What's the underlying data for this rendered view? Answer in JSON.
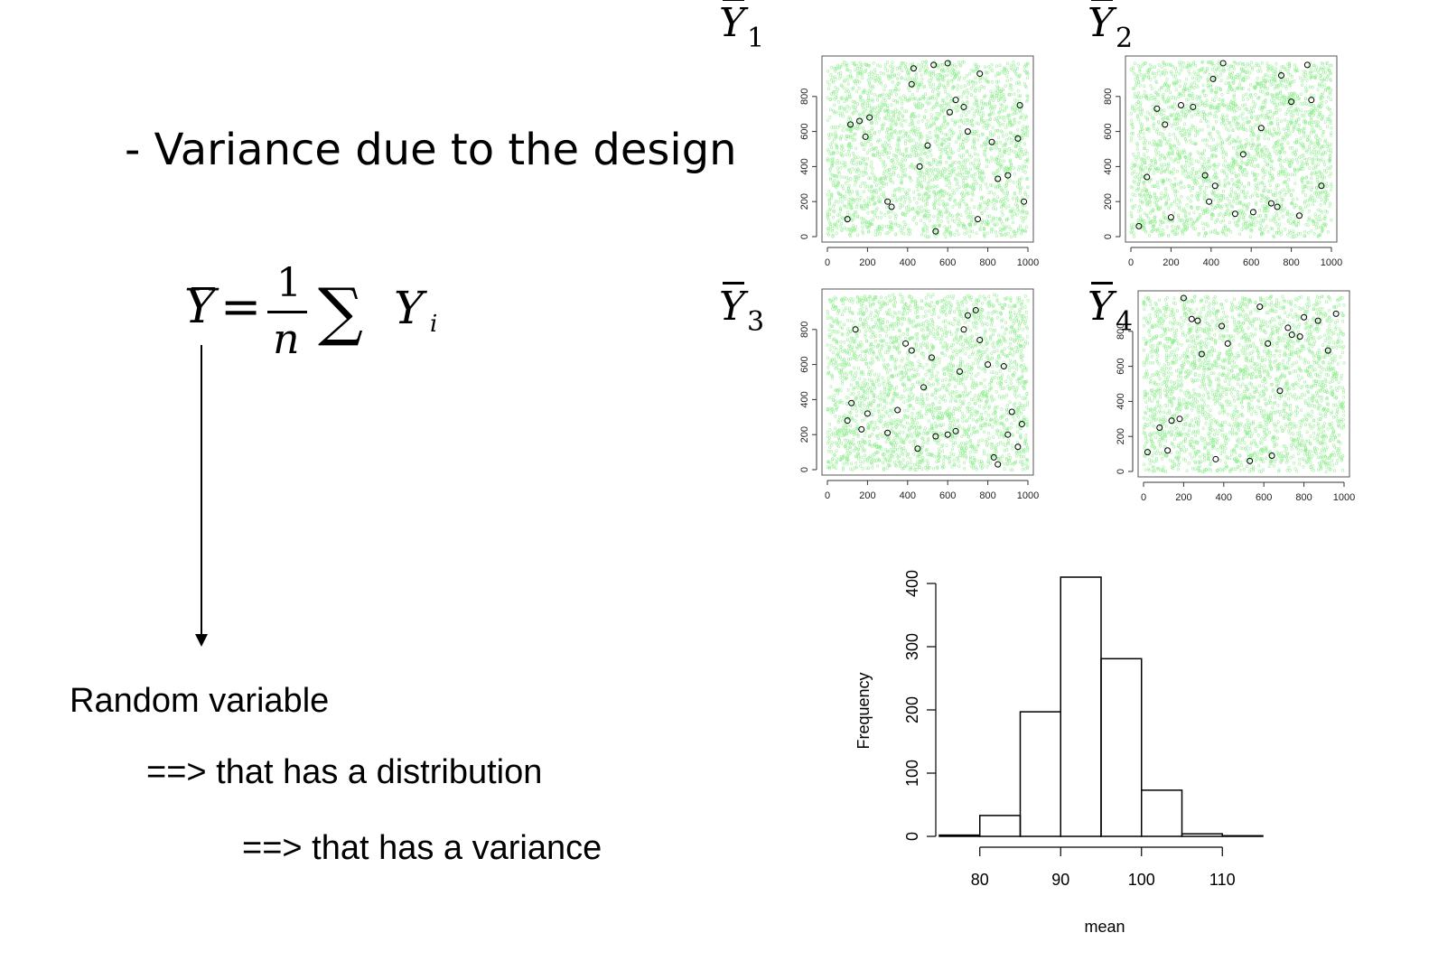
{
  "slide": {
    "title": "- Variance due to the design",
    "lines": [
      "Random variable",
      "==> that has a distribution",
      "==> that has a variance"
    ],
    "formula": {
      "lhs": "Y",
      "equals": "=",
      "numerator": "1",
      "denominator": "n",
      "sum": "∑",
      "term": "Y",
      "index": "i"
    }
  },
  "sample_panels": [
    {
      "label": "Y",
      "sub": "1"
    },
    {
      "label": "Y",
      "sub": "2"
    },
    {
      "label": "Y",
      "sub": "3"
    },
    {
      "label": "Y",
      "sub": "4"
    }
  ],
  "colors": {
    "population_points": "#90ee90",
    "sample_points": "#000000"
  },
  "chart_data": [
    {
      "type": "scatter",
      "name_ref": "Y1 sample",
      "xlim": [
        0,
        1000
      ],
      "ylim": [
        0,
        1000
      ],
      "x_ticks": [
        "0",
        "200",
        "400",
        "600",
        "800",
        "1000"
      ],
      "y_ticks": [
        "0",
        "200",
        "400",
        "600",
        "800"
      ],
      "population": "uniform points filling the square",
      "sample_x": [
        100,
        115,
        160,
        210,
        190,
        300,
        320,
        420,
        430,
        460,
        500,
        530,
        540,
        600,
        610,
        640,
        680,
        700,
        750,
        760,
        820,
        850,
        900,
        950,
        960,
        980
      ],
      "sample_y": [
        100,
        640,
        660,
        680,
        570,
        200,
        170,
        870,
        960,
        400,
        520,
        980,
        30,
        990,
        710,
        780,
        740,
        600,
        100,
        930,
        540,
        330,
        350,
        560,
        750,
        200
      ]
    },
    {
      "type": "scatter",
      "name_ref": "Y2 sample",
      "xlim": [
        0,
        1000
      ],
      "ylim": [
        0,
        1000
      ],
      "x_ticks": [
        "0",
        "200",
        "400",
        "600",
        "800",
        "1000"
      ],
      "y_ticks": [
        "0",
        "200",
        "400",
        "600",
        "800"
      ],
      "sample_x": [
        40,
        80,
        130,
        170,
        200,
        250,
        310,
        370,
        390,
        410,
        420,
        460,
        520,
        560,
        610,
        650,
        700,
        730,
        750,
        800,
        840,
        880,
        900,
        950
      ],
      "sample_y": [
        60,
        340,
        730,
        640,
        110,
        750,
        740,
        350,
        200,
        900,
        290,
        990,
        130,
        470,
        140,
        620,
        190,
        170,
        920,
        770,
        120,
        980,
        780,
        290
      ]
    },
    {
      "type": "scatter",
      "name_ref": "Y3 sample",
      "xlim": [
        0,
        1000
      ],
      "ylim": [
        0,
        1000
      ],
      "x_ticks": [
        "0",
        "200",
        "400",
        "600",
        "800",
        "1000"
      ],
      "y_ticks": [
        "0",
        "200",
        "400",
        "600",
        "800"
      ],
      "sample_x": [
        100,
        120,
        140,
        170,
        200,
        300,
        350,
        390,
        420,
        450,
        480,
        520,
        540,
        600,
        640,
        660,
        680,
        700,
        740,
        760,
        800,
        830,
        850,
        880,
        900,
        920,
        950,
        970
      ],
      "sample_y": [
        280,
        380,
        800,
        230,
        320,
        210,
        340,
        720,
        680,
        120,
        470,
        640,
        190,
        200,
        220,
        560,
        800,
        880,
        910,
        740,
        600,
        70,
        30,
        590,
        200,
        330,
        130,
        260
      ]
    },
    {
      "type": "scatter",
      "name_ref": "Y4 sample",
      "xlim": [
        0,
        1000
      ],
      "ylim": [
        0,
        1000
      ],
      "x_ticks": [
        "0",
        "200",
        "400",
        "600",
        "800",
        "1000"
      ],
      "y_ticks": [
        "0",
        "200",
        "400",
        "600",
        "800"
      ],
      "sample_x": [
        20,
        80,
        120,
        140,
        180,
        200,
        240,
        270,
        290,
        360,
        390,
        420,
        530,
        580,
        620,
        640,
        680,
        720,
        740,
        780,
        800,
        870,
        920,
        960
      ],
      "sample_y": [
        110,
        250,
        120,
        290,
        300,
        990,
        870,
        860,
        670,
        70,
        830,
        730,
        60,
        940,
        730,
        90,
        460,
        820,
        780,
        770,
        880,
        860,
        690,
        900
      ]
    },
    {
      "type": "bar",
      "subtype": "histogram",
      "xlabel": "mean",
      "ylabel": "Frequency",
      "bin_edges": [
        75,
        80,
        85,
        90,
        95,
        100,
        105,
        110,
        115
      ],
      "values": [
        2,
        33,
        197,
        410,
        281,
        73,
        4,
        1
      ],
      "xlim": [
        75,
        115
      ],
      "ylim": [
        0,
        400
      ],
      "x_ticks": [
        "80",
        "90",
        "100",
        "110"
      ],
      "y_ticks": [
        "0",
        "100",
        "200",
        "300",
        "400"
      ]
    }
  ]
}
